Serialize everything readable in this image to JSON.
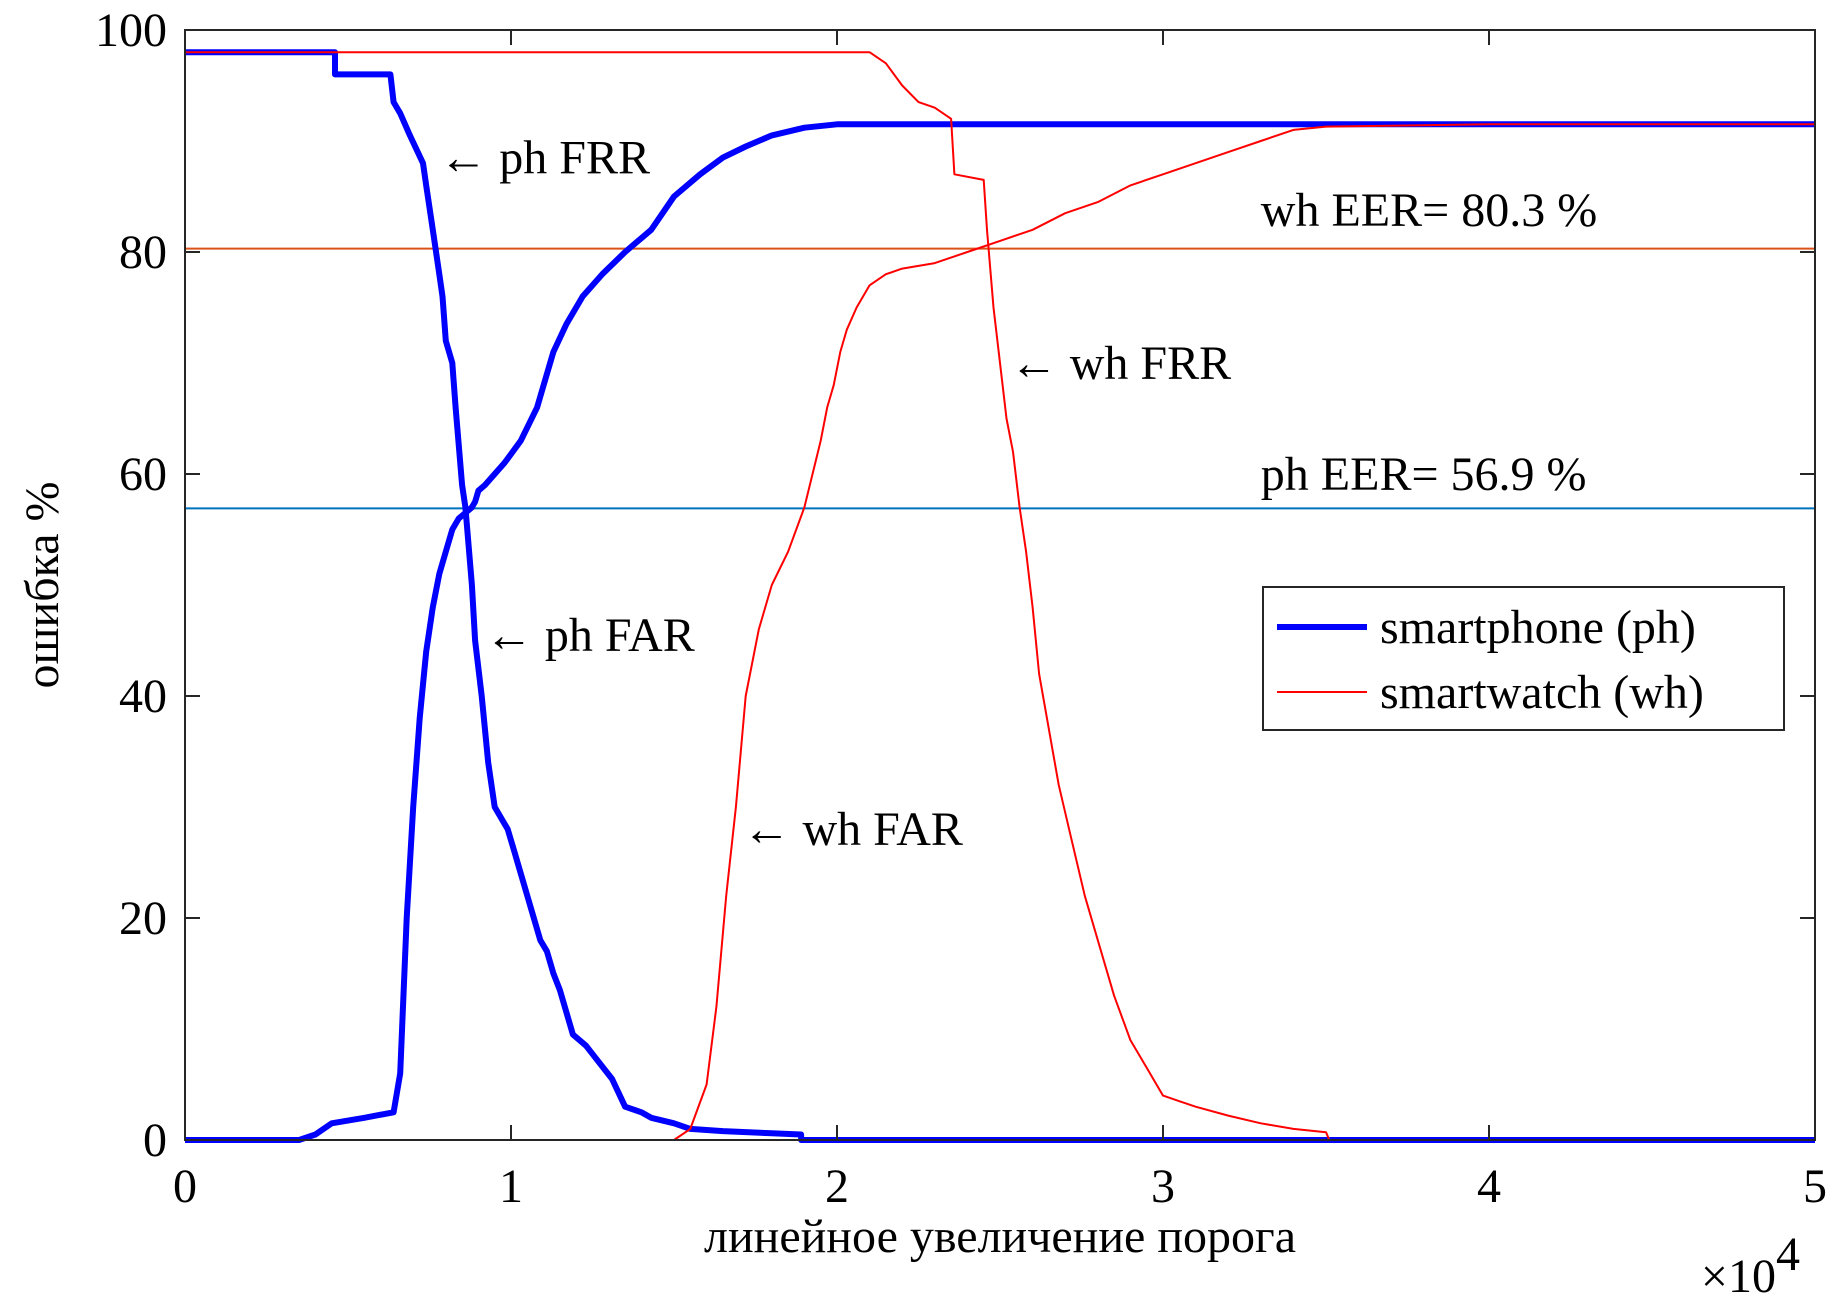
{
  "chart_data": {
    "type": "line",
    "title": "",
    "xlabel": "линейное увеличение порога",
    "ylabel": "ошибка %",
    "x_exponent_base": "×10",
    "x_exponent_power": "4",
    "xlim": [
      0,
      50000
    ],
    "ylim": [
      0,
      100
    ],
    "x_ticks": [
      0,
      10000,
      20000,
      30000,
      40000,
      50000
    ],
    "x_tick_labels": [
      "0",
      "1",
      "2",
      "3",
      "4",
      "5"
    ],
    "y_ticks": [
      0,
      20,
      40,
      60,
      80,
      100
    ],
    "y_tick_labels": [
      "0",
      "20",
      "40",
      "60",
      "80",
      "100"
    ],
    "grid": false,
    "legend_position": "middle-right",
    "series": [
      {
        "name": "smartphone (ph)",
        "color": "#0000ff",
        "width": 6,
        "curves": [
          {
            "id": "ph-frr",
            "x": [
              0,
              4600,
              4600,
              6300,
              6400,
              6600,
              6900,
              7300,
              7400,
              7600,
              7800,
              7900,
              8000,
              8200,
              8300,
              8500,
              8600,
              8800,
              8900,
              9100,
              9300,
              9500,
              9700,
              9900,
              10100,
              10300,
              10500,
              10700,
              10900,
              11100,
              11300,
              11500,
              11900,
              12300,
              12700,
              13100,
              13500,
              14000,
              14300,
              15000,
              15500,
              16500,
              18000,
              18900,
              18900,
              50000
            ],
            "y": [
              98,
              98,
              96,
              96,
              93.5,
              92.5,
              90.5,
              88,
              86,
              82,
              78,
              76,
              72,
              70,
              66,
              59,
              57,
              50,
              45,
              40,
              34,
              30,
              29,
              28,
              26,
              24,
              22,
              20,
              18,
              17,
              15,
              13.5,
              9.5,
              8.5,
              7,
              5.5,
              3,
              2.5,
              2,
              1.5,
              1,
              0.8,
              0.6,
              0.5,
              0,
              0
            ]
          },
          {
            "id": "ph-far",
            "x": [
              0,
              3500,
              4000,
              4500,
              5500,
              6400,
              6600,
              6800,
              7000,
              7200,
              7400,
              7600,
              7800,
              8000,
              8200,
              8400,
              8600,
              8800,
              8900,
              9000,
              9200,
              9500,
              9800,
              10300,
              10800,
              11000,
              11300,
              11700,
              12200,
              12800,
              13500,
              14300,
              15000,
              15800,
              16500,
              17200,
              18000,
              19000,
              20000,
              25000,
              35000,
              50000
            ],
            "y": [
              0,
              0,
              0.5,
              1.5,
              2,
              2.5,
              6,
              20,
              30,
              38,
              44,
              48,
              51,
              53,
              55,
              56,
              56.5,
              57,
              57.5,
              58.5,
              59,
              60,
              61,
              63,
              66,
              68,
              71,
              73.5,
              76,
              78,
              80,
              82,
              85,
              87,
              88.5,
              89.5,
              90.5,
              91.2,
              91.5,
              91.5,
              91.5,
              91.5
            ]
          }
        ]
      },
      {
        "name": "smartwatch (wh)",
        "color": "#ff0000",
        "width": 2,
        "curves": [
          {
            "id": "wh-frr",
            "x": [
              0,
              21000,
              21500,
              22000,
              22500,
              23000,
              23500,
              23600,
              24500,
              24600,
              24800,
              25000,
              25200,
              25400,
              25600,
              25800,
              26000,
              26200,
              26500,
              26800,
              27200,
              27600,
              28000,
              28500,
              29000,
              29500,
              30000,
              30500,
              31000,
              32000,
              33000,
              34000,
              35000,
              35100,
              50000
            ],
            "y": [
              98,
              98,
              97,
              95,
              93.5,
              93,
              92,
              87,
              86.5,
              82,
              75,
              70,
              65,
              62,
              57,
              53,
              48,
              42,
              37,
              32,
              27,
              22,
              18,
              13,
              9,
              6.5,
              4,
              3.5,
              3,
              2.2,
              1.5,
              1,
              0.7,
              0,
              0
            ]
          },
          {
            "id": "wh-far",
            "x": [
              0,
              15000,
              15500,
              16000,
              16300,
              16600,
              16900,
              17200,
              17600,
              18000,
              18500,
              19000,
              19500,
              19700,
              19900,
              20100,
              20300,
              20600,
              21000,
              21500,
              22000,
              23000,
              24000,
              25000,
              26000,
              27000,
              28000,
              29000,
              30000,
              31000,
              32000,
              33000,
              34000,
              35000,
              40000,
              50000
            ],
            "y": [
              0,
              0,
              1,
              5,
              12,
              22,
              30,
              40,
              46,
              50,
              53,
              57,
              63,
              66,
              68,
              71,
              73,
              75,
              77,
              78,
              78.5,
              79,
              80,
              81,
              82,
              83.5,
              84.5,
              86,
              87,
              88,
              89,
              90,
              91,
              91.3,
              91.5,
              91.5
            ]
          }
        ]
      }
    ],
    "reference_lines": [
      {
        "id": "wh-eer-line",
        "y": 80.3,
        "color": "#d95319"
      },
      {
        "id": "ph-eer-line",
        "y": 56.9,
        "color": "#0072bd"
      }
    ],
    "annotations": [
      {
        "id": "ph-frr-label",
        "text": "← ph FRR",
        "x": 7800,
        "y": 88.5
      },
      {
        "id": "ph-far-label",
        "text": "← ph FAR",
        "x": 9200,
        "y": 45.5
      },
      {
        "id": "wh-frr-label",
        "text": "← wh FRR",
        "x": 25300,
        "y": 70
      },
      {
        "id": "wh-far-label",
        "text": "← wh FAR",
        "x": 17100,
        "y": 28
      },
      {
        "id": "wh-eer-label",
        "text": "wh EER= 80.3 %",
        "x": 33000,
        "y": 83.8
      },
      {
        "id": "ph-eer-label",
        "text": "ph EER= 56.9 %",
        "x": 33000,
        "y": 60
      }
    ]
  }
}
